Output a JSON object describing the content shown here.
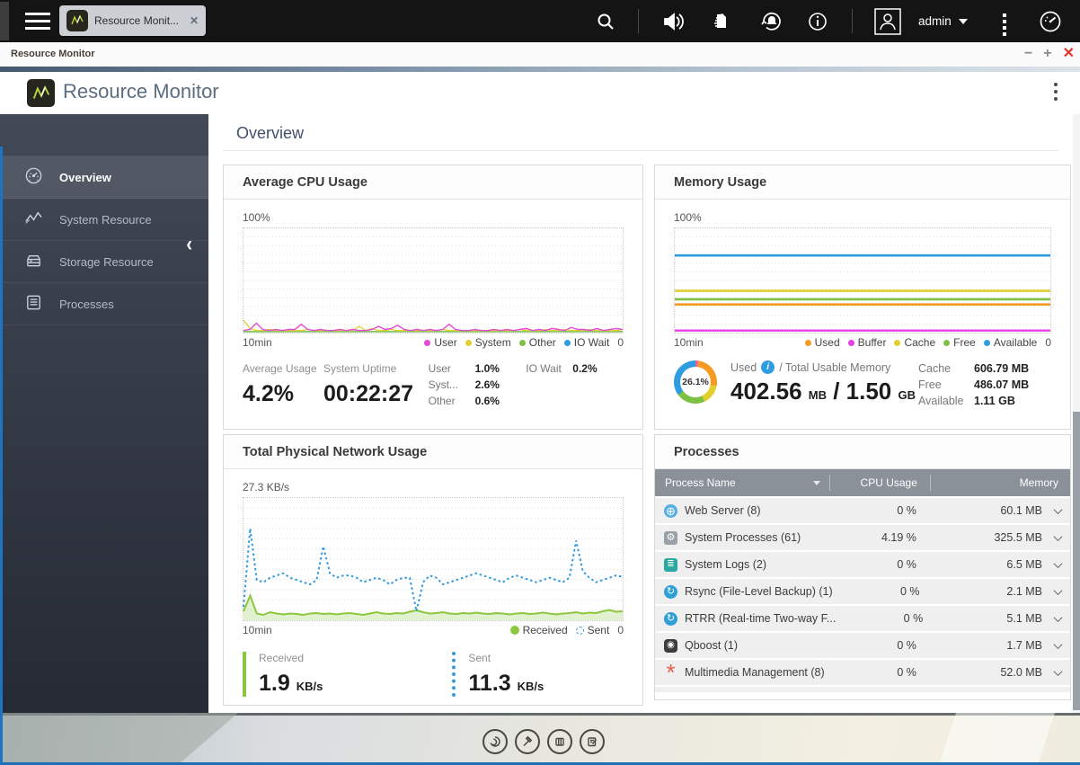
{
  "taskbar": {
    "tab_label": "Resource Monit...",
    "close_tab": "✕",
    "username": "admin",
    "icons": [
      "search-icon",
      "speaker-icon",
      "logs-icon",
      "alert-sync-icon",
      "info-icon",
      "user-icon",
      "more-dots-icon",
      "dashboard-icon"
    ]
  },
  "window": {
    "title": "Resource Monitor",
    "minimize": "−",
    "maximize": "+",
    "close": "✕"
  },
  "app_header": {
    "title": "Resource Monitor"
  },
  "sidebar": {
    "collapse": "‹",
    "items": [
      {
        "label": "Overview",
        "icon": "gauge-icon",
        "active": true
      },
      {
        "label": "System Resource",
        "icon": "line-chart-icon",
        "active": false
      },
      {
        "label": "Storage Resource",
        "icon": "storage-icon",
        "active": false
      },
      {
        "label": "Processes",
        "icon": "list-icon",
        "active": false
      }
    ]
  },
  "page": {
    "title": "Overview"
  },
  "panels": {
    "cpu": {
      "title": "Average CPU Usage",
      "y_top_label": "100%",
      "x_left_label": "10min",
      "x_right_label": "0",
      "legend": [
        {
          "label": "User",
          "color": "#e54ad4"
        },
        {
          "label": "System",
          "color": "#e3cf2e"
        },
        {
          "label": "Other",
          "color": "#7cc142"
        },
        {
          "label": "IO Wait",
          "color": "#2e9de0"
        }
      ],
      "stats": {
        "average_usage_label": "Average Usage",
        "average_usage": "4.2%",
        "uptime_label": "System Uptime",
        "uptime": "00:22:27",
        "breakdown": [
          [
            "User",
            "1.0%"
          ],
          [
            "Syst...",
            "2.6%"
          ],
          [
            "Other",
            "0.6%"
          ]
        ],
        "io": [
          [
            "IO Wait",
            "0.2%"
          ]
        ]
      },
      "chart_data": {
        "type": "line",
        "ylim": [
          0,
          100
        ],
        "ymax": 100,
        "grid": true,
        "x_axis": "last 10 minutes (10min → 0)",
        "series": [
          {
            "name": "IO Wait",
            "color": "#2e9de0",
            "width": 1.3,
            "values": [
              0.3,
              0.3
            ]
          },
          {
            "name": "Other",
            "color": "#7cc142",
            "width": 1.3,
            "values": [
              1,
              1
            ]
          },
          {
            "name": "System",
            "color": "#e3cf2e",
            "width": 1.3,
            "values": [
              12,
              4,
              2,
              2,
              3,
              2,
              2,
              2,
              2,
              2,
              3,
              2,
              2,
              2,
              2,
              2,
              2,
              2,
              6,
              2,
              4,
              2,
              2,
              3,
              2,
              2,
              2,
              2,
              2,
              2,
              2,
              3,
              2,
              2,
              2,
              2,
              2,
              2,
              2,
              2,
              2,
              2,
              2,
              3,
              2,
              2,
              2,
              3,
              2,
              2,
              3,
              2,
              2,
              2,
              3,
              2,
              2,
              2,
              2,
              3
            ]
          },
          {
            "name": "User",
            "color": "#e54ad4",
            "width": 1.4,
            "values": [
              2,
              3,
              9,
              3,
              2,
              3,
              2,
              3,
              3,
              8,
              3,
              2,
              3,
              2,
              2,
              3,
              2,
              3,
              2,
              2,
              3,
              6,
              3,
              4,
              7,
              3,
              2,
              3,
              2,
              3,
              2,
              3,
              8,
              3,
              2,
              2,
              3,
              2,
              2,
              3,
              2,
              3,
              2,
              3,
              4,
              2,
              3,
              2,
              4,
              3,
              2,
              5,
              3,
              3,
              2,
              4,
              2,
              3,
              4,
              3
            ]
          }
        ]
      }
    },
    "memory": {
      "title": "Memory Usage",
      "y_top_label": "100%",
      "x_left_label": "10min",
      "x_right_label": "0",
      "legend": [
        {
          "label": "Used",
          "color": "#f59a23"
        },
        {
          "label": "Buffer",
          "color": "#e83ee8"
        },
        {
          "label": "Cache",
          "color": "#e3cf2e"
        },
        {
          "label": "Free",
          "color": "#7cc142"
        },
        {
          "label": "Available",
          "color": "#2e9de0"
        }
      ],
      "donut": {
        "percent_label": "26.1%",
        "segments": [
          {
            "name": "Buffer",
            "color": "#ef5fa7",
            "pct": 2
          },
          {
            "name": "Used",
            "color": "#f59a23",
            "pct": 26
          },
          {
            "name": "Cache",
            "color": "#e3cf2e",
            "pct": 15
          },
          {
            "name": "Free",
            "color": "#7cc142",
            "pct": 22
          },
          {
            "name": "Available",
            "color": "#2e9de0",
            "pct": 35
          }
        ]
      },
      "used_label": "Used",
      "total_label": "/ Total Usable Memory",
      "used_value": "402.56",
      "used_unit": "MB",
      "total_value": "1.50",
      "total_unit": "GB",
      "details": [
        [
          "Cache",
          "606.79 MB"
        ],
        [
          "Free",
          "486.07 MB"
        ],
        [
          "Available",
          "1.11 GB"
        ]
      ],
      "chart_data": {
        "type": "line",
        "ylim": [
          0,
          100
        ],
        "ymax": 100,
        "grid": true,
        "x_axis": "last 10 minutes (10min → 0)",
        "series": [
          {
            "name": "Available",
            "color": "#2e9de0",
            "width": 2.6,
            "values": [
              74,
              74
            ]
          },
          {
            "name": "Cache",
            "color": "#e3cf2e",
            "width": 2.6,
            "values": [
              40,
              40
            ]
          },
          {
            "name": "Free",
            "color": "#7cc142",
            "width": 2.6,
            "values": [
              32,
              32
            ]
          },
          {
            "name": "Used",
            "color": "#f59a23",
            "width": 2.6,
            "values": [
              27,
              27
            ]
          },
          {
            "name": "Buffer",
            "color": "#e83ee8",
            "width": 2.4,
            "values": [
              2,
              2
            ]
          }
        ]
      }
    },
    "network": {
      "title": "Total Physical Network Usage",
      "y_top_label": "27.3 KB/s",
      "x_left_label": "10min",
      "x_right_label": "0",
      "legend": [
        {
          "label": "Received",
          "color": "#8dc63f",
          "marker": "big-dot"
        },
        {
          "label": "Sent",
          "color": "#3399dd",
          "marker": "dashed-circle"
        }
      ],
      "stats": {
        "received_label": "Received",
        "received_value": "1.9",
        "received_unit": "KB/s",
        "sent_label": "Sent",
        "sent_value": "11.3",
        "sent_unit": "KB/s"
      },
      "chart_data": {
        "type": "line",
        "ylim": [
          0,
          27.3
        ],
        "ymax": 27.3,
        "grid": true,
        "x_axis": "last 10 minutes (10min → 0)",
        "series": [
          {
            "name": "Received",
            "color": "#8dc63f",
            "width": 2,
            "fill": "rgba(141,198,63,0.25)",
            "values": [
              2,
              5.5,
              1.5,
              1.2,
              1.8,
              1.5,
              1.3,
              1.5,
              1.4,
              1.2,
              1.5,
              1.6,
              1.4,
              1.5,
              1.3,
              1.5,
              1.6,
              1.4,
              1.2,
              1.5,
              1.8,
              1.5,
              1.4,
              1.6,
              1.5,
              1.9,
              2.2,
              1.8,
              1.5,
              1.6,
              1.8,
              1.5,
              1.4,
              1.6,
              1.5,
              1.7,
              1.5,
              1.4,
              1.6,
              1.5,
              1.3,
              1.5,
              1.6,
              1.4,
              1.5,
              1.7,
              1.5,
              1.3,
              1.5,
              1.6,
              1.8,
              1.5,
              1.7,
              1.6,
              2.0,
              2.3,
              1.9,
              2.0
            ]
          },
          {
            "name": "Sent",
            "color": "#3399dd",
            "width": 2,
            "dash": "2.5,3",
            "values": [
              3,
              20.5,
              9,
              8.5,
              9.5,
              10,
              10.5,
              9.5,
              9,
              8.5,
              8,
              9,
              16.5,
              10.5,
              9.5,
              10,
              10,
              9.5,
              8.5,
              9,
              9.5,
              9,
              8,
              9,
              9.5,
              9.5,
              2,
              8.5,
              10,
              9.5,
              8,
              8.5,
              9,
              9.5,
              10,
              10.5,
              10,
              9.5,
              9,
              8.5,
              9.5,
              10,
              9.5,
              9,
              8.5,
              9,
              9.5,
              9,
              8.5,
              9.5,
              17.8,
              11,
              9.5,
              8.5,
              9,
              9.5,
              10,
              9.7
            ]
          }
        ]
      }
    },
    "processes": {
      "title": "Processes",
      "columns": [
        "Process Name",
        "CPU Usage",
        "Memory"
      ],
      "rows": [
        {
          "icon": "web-server-icon",
          "name": "Web Server (8)",
          "cpu": "0 %",
          "memory": "60.1 MB"
        },
        {
          "icon": "system-processes-icon",
          "name": "System Processes (61)",
          "cpu": "4.19 %",
          "memory": "325.5 MB"
        },
        {
          "icon": "system-logs-icon",
          "name": "System Logs (2)",
          "cpu": "0 %",
          "memory": "6.5 MB"
        },
        {
          "icon": "rsync-icon",
          "name": "Rsync (File-Level Backup)  (1)",
          "cpu": "0 %",
          "memory": "2.1 MB"
        },
        {
          "icon": "rtrr-icon",
          "name": "RTRR (Real-time Two-way F...",
          "cpu": "0 %",
          "memory": "5.1 MB"
        },
        {
          "icon": "qboost-icon",
          "name": "Qboost (1)",
          "cpu": "0 %",
          "memory": "1.7 MB"
        },
        {
          "icon": "multimedia-icon",
          "name": "Multimedia Management (8)",
          "cpu": "0 %",
          "memory": "52.0 MB"
        }
      ]
    }
  },
  "dock": {
    "icons": [
      "swirl-icon",
      "hammer-icon",
      "columns-icon",
      "note-icon"
    ]
  },
  "colors": {
    "accent_blue": "#1f6fb5",
    "taskbar_bg": "#141414",
    "sidebar_top": "#424957",
    "sidebar_bottom": "#252a34",
    "header_title": "#5b6d81",
    "close_red": "#e0352b"
  }
}
